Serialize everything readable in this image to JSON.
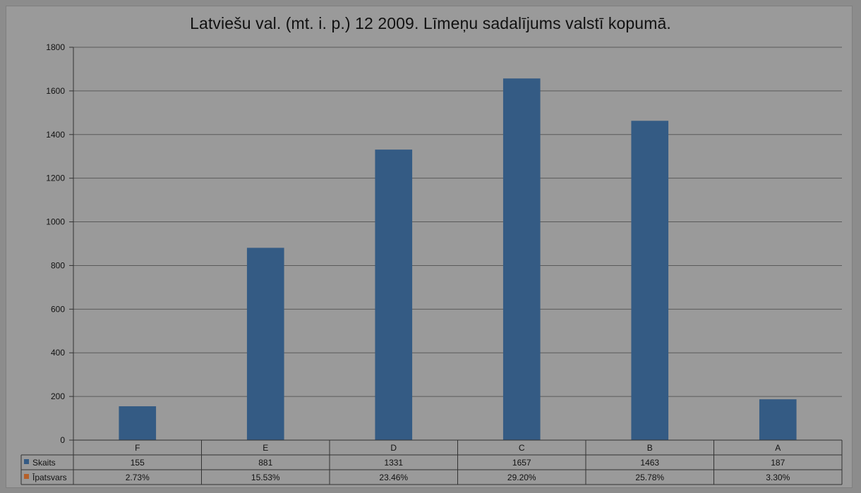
{
  "chart_data": {
    "type": "bar",
    "title": "Latviešu val. (mt. i. p.) 12 2009. Līmeņu sadalījums valstī kopumā.",
    "categories": [
      "F",
      "E",
      "D",
      "C",
      "B",
      "A"
    ],
    "series": [
      {
        "name": "Skaits",
        "values": [
          155,
          881,
          1331,
          1657,
          1463,
          187
        ],
        "labels": [
          "155",
          "881",
          "1331",
          "1657",
          "1463",
          "187"
        ],
        "color": "#345b84"
      },
      {
        "name": "Īpatsvars",
        "values": [
          2.73,
          15.53,
          23.46,
          29.2,
          25.78,
          3.3
        ],
        "labels": [
          "2.73%",
          "15.53%",
          "23.46%",
          "29.20%",
          "25.78%",
          "3.30%"
        ],
        "color": "#b5602a"
      }
    ],
    "ylim": [
      0,
      1800
    ],
    "yticks": [
      0,
      200,
      400,
      600,
      800,
      1000,
      1200,
      1400,
      1600,
      1800
    ],
    "grid": true,
    "legend": "data-table"
  }
}
